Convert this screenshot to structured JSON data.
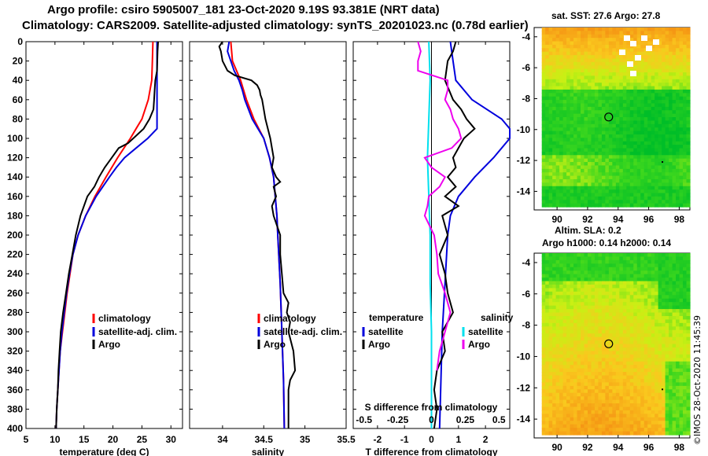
{
  "header": {
    "title_line1": "Argo profile: csiro 5905007_181 23-Oct-2020 9.19S 93.381E (NRT data)",
    "title_line2": "Climatology: CARS2009. Satellite-adjusted climatology: synTS_20201023.nc (0.78d earlier)"
  },
  "colors": {
    "climatology": "#ff0000",
    "satellite": "#0000dd",
    "argo": "#000000",
    "t_diff_argo": "#000000",
    "s_diff_sat": "#00e0ee",
    "s_diff_argo": "#ee00ee"
  },
  "chart_data": [
    {
      "type": "line",
      "name": "temperature-profile",
      "xlabel": "temperature (deg C)",
      "ylabel": "",
      "xlim": [
        5,
        32
      ],
      "ylim": [
        400,
        0
      ],
      "xticks": [
        5,
        10,
        15,
        20,
        25,
        30
      ],
      "yticks": [
        0,
        20,
        40,
        60,
        80,
        100,
        120,
        140,
        160,
        180,
        200,
        220,
        240,
        260,
        280,
        300,
        320,
        340,
        360,
        380,
        400
      ],
      "legend": [
        "climatology",
        "satellite-adj. clim.",
        "Argo"
      ],
      "series": [
        {
          "name": "climatology",
          "color": "red",
          "depth": [
            0,
            20,
            40,
            60,
            80,
            90,
            100,
            110,
            120,
            140,
            160,
            180,
            200,
            220,
            240,
            260,
            280,
            300,
            320,
            340,
            360,
            380,
            400
          ],
          "values": [
            26.9,
            26.8,
            26.7,
            26.1,
            25.0,
            24.0,
            23.0,
            21.9,
            20.8,
            18.8,
            16.9,
            15.3,
            14.0,
            13.1,
            12.6,
            12.1,
            11.7,
            11.3,
            10.9,
            10.7,
            10.5,
            10.3,
            10.2
          ]
        },
        {
          "name": "satellite-adj. clim.",
          "color": "blue",
          "depth": [
            0,
            20,
            40,
            60,
            80,
            90,
            100,
            110,
            120,
            130,
            140,
            160,
            180,
            200,
            220,
            240,
            260,
            280,
            300,
            320,
            340,
            360,
            380,
            400
          ],
          "values": [
            27.6,
            27.6,
            27.6,
            27.6,
            27.6,
            27.6,
            26.0,
            24.0,
            22.0,
            20.6,
            19.4,
            17.1,
            15.3,
            14.0,
            13.1,
            12.5,
            12.0,
            11.6,
            11.2,
            10.9,
            10.7,
            10.5,
            10.3,
            10.2
          ]
        },
        {
          "name": "Argo",
          "color": "black",
          "depth": [
            0,
            10,
            30,
            40,
            50,
            60,
            70,
            80,
            90,
            100,
            105,
            110,
            120,
            130,
            140,
            150,
            160,
            180,
            200,
            220,
            240,
            260,
            280,
            300,
            320,
            340,
            360,
            380,
            400
          ],
          "values": [
            27.8,
            27.7,
            27.6,
            27.3,
            27.2,
            27.1,
            27.0,
            26.3,
            25.3,
            23.5,
            22.6,
            21.0,
            19.8,
            18.6,
            17.6,
            16.8,
            15.6,
            14.4,
            13.6,
            13.0,
            12.4,
            11.9,
            11.4,
            11.0,
            10.8,
            10.6,
            10.5,
            10.3,
            10.2
          ]
        }
      ]
    },
    {
      "type": "line",
      "name": "salinity-profile",
      "xlabel": "salinity",
      "ylabel": "",
      "xlim": [
        33.6,
        35.5
      ],
      "ylim": [
        400,
        0
      ],
      "xticks": [
        34,
        34.5,
        35,
        35.5
      ],
      "xticklabels": [
        "34",
        "34.5",
        "35",
        "35.5"
      ],
      "legend": [
        "climatology",
        "satellite-adj. clim.",
        "Argo"
      ],
      "series": [
        {
          "name": "climatology",
          "color": "red",
          "depth": [
            0,
            20,
            40,
            60,
            80,
            100,
            120,
            140,
            160,
            180,
            200,
            250,
            300,
            350,
            400
          ],
          "values": [
            34.1,
            34.12,
            34.22,
            34.29,
            34.38,
            34.5,
            34.57,
            34.62,
            34.64,
            34.66,
            34.67,
            34.7,
            34.72,
            34.74,
            34.75
          ]
        },
        {
          "name": "satellite-adj. clim.",
          "color": "blue",
          "depth": [
            0,
            10,
            20,
            30,
            40,
            50,
            60,
            80,
            100,
            120,
            140,
            160,
            180,
            200,
            250,
            300,
            350,
            400
          ],
          "values": [
            34.08,
            34.06,
            34.1,
            34.14,
            34.2,
            34.24,
            34.27,
            34.36,
            34.5,
            34.57,
            34.62,
            34.64,
            34.66,
            34.67,
            34.7,
            34.72,
            34.74,
            34.75
          ]
        },
        {
          "name": "Argo",
          "color": "black",
          "depth": [
            0,
            5,
            10,
            20,
            30,
            35,
            40,
            45,
            50,
            55,
            60,
            70,
            80,
            90,
            100,
            110,
            120,
            130,
            140,
            145,
            150,
            160,
            170,
            180,
            200,
            220,
            240,
            260,
            270,
            280,
            290,
            300,
            320,
            340,
            350,
            360,
            380,
            400
          ],
          "values": [
            34.0,
            33.96,
            33.98,
            34.0,
            34.06,
            34.15,
            34.35,
            34.42,
            34.45,
            34.46,
            34.48,
            34.5,
            34.52,
            34.55,
            34.58,
            34.6,
            34.62,
            34.6,
            34.65,
            34.7,
            34.62,
            34.65,
            34.6,
            34.62,
            34.7,
            34.7,
            34.72,
            34.74,
            34.8,
            34.78,
            34.82,
            34.8,
            34.86,
            34.88,
            34.82,
            34.8,
            34.8,
            34.8
          ]
        }
      ]
    },
    {
      "type": "line",
      "name": "difference-profile",
      "xlabel": "T difference from climatology",
      "top_axis_label": "S difference from climatology",
      "xlim": [
        -2.9,
        2.9
      ],
      "ylim": [
        400,
        0
      ],
      "xticks": [
        -2,
        -1,
        0,
        1,
        2
      ],
      "xticklabels": [
        "-2",
        "-1",
        "0",
        "1",
        "2"
      ],
      "top_xticks": [
        -0.5,
        -0.25,
        0,
        0.25,
        0.5
      ],
      "top_xticklabels": [
        "-0.5",
        "-0.25",
        "0",
        "0.25",
        "0.5"
      ],
      "legend_left_title": "temperature",
      "legend_right_title": "salinity",
      "legend_labels": {
        "satellite": "satellite",
        "argo": "Argo"
      },
      "series": [
        {
          "name": "T satellite - clim",
          "color": "blue",
          "depth": [
            0,
            20,
            40,
            60,
            80,
            90,
            100,
            120,
            140,
            160,
            180,
            200,
            250,
            300,
            400
          ],
          "values": [
            0.7,
            0.8,
            0.9,
            1.5,
            2.6,
            2.9,
            2.9,
            2.3,
            1.6,
            1.0,
            0.7,
            0.6,
            0.5,
            0.4,
            0.3
          ]
        },
        {
          "name": "T Argo - clim",
          "color": "black",
          "depth": [
            0,
            10,
            20,
            40,
            60,
            70,
            80,
            90,
            100,
            110,
            120,
            130,
            140,
            150,
            160,
            170,
            180,
            200,
            220,
            240,
            260,
            280,
            300,
            320,
            340,
            360,
            380,
            400
          ],
          "values": [
            0.9,
            0.8,
            0.6,
            0.5,
            0.8,
            1.1,
            1.3,
            1.6,
            1.2,
            1.0,
            0.8,
            0.9,
            0.6,
            0.9,
            0.5,
            1.0,
            0.4,
            0.6,
            0.3,
            0.5,
            0.6,
            0.8,
            0.4,
            0.5,
            0.2,
            0.1,
            0.2,
            0.1
          ]
        },
        {
          "name": "S satellite - clim",
          "color": "cyan",
          "depth": [
            0,
            40,
            80,
            120,
            160,
            200,
            250,
            300,
            350,
            400
          ],
          "values": [
            -0.02,
            -0.01,
            -0.02,
            -0.03,
            -0.02,
            -0.01,
            -0.01,
            0.0,
            0.0,
            0.0
          ]
        },
        {
          "name": "S Argo - clim",
          "color": "magenta",
          "depth": [
            0,
            10,
            20,
            30,
            40,
            50,
            60,
            70,
            80,
            90,
            100,
            110,
            120,
            130,
            140,
            150,
            160,
            170,
            180,
            200,
            220,
            240,
            260,
            280,
            300,
            320,
            340
          ],
          "values": [
            -0.1,
            -0.08,
            -0.1,
            -0.1,
            0.12,
            0.12,
            0.1,
            0.14,
            0.16,
            0.2,
            0.22,
            0.15,
            -0.05,
            0.0,
            0.1,
            0.06,
            -0.02,
            -0.03,
            -0.05,
            0.02,
            0.04,
            0.05,
            0.1,
            0.14,
            0.1,
            0.06,
            0.04
          ]
        }
      ]
    },
    {
      "type": "heatmap",
      "name": "sst-map",
      "title": "sat. SST: 27.6 Argo: 27.8",
      "xticks": [
        90,
        92,
        94,
        96,
        98
      ],
      "yticks": [
        -4,
        -6,
        -8,
        -10,
        -12,
        -14
      ],
      "xlim": [
        88.5,
        98.7
      ],
      "ylim": [
        -15.2,
        -3.4
      ],
      "marker": {
        "lon": 93.381,
        "lat": -9.19
      }
    },
    {
      "type": "heatmap",
      "name": "sla-map",
      "title": "Altim. SLA: 0.2",
      "subtitle": "Argo h1000: 0.14 h2000: 0.14",
      "xticks": [
        90,
        92,
        94,
        96,
        98
      ],
      "yticks": [
        -4,
        -6,
        -8,
        -10,
        -12,
        -14
      ],
      "xlim": [
        88.5,
        98.7
      ],
      "ylim": [
        -15.2,
        -3.4
      ],
      "marker": {
        "lon": 93.381,
        "lat": -9.19
      }
    }
  ],
  "footer": {
    "credit": "©IMOS 28-Oct-2020 11:45:39"
  }
}
